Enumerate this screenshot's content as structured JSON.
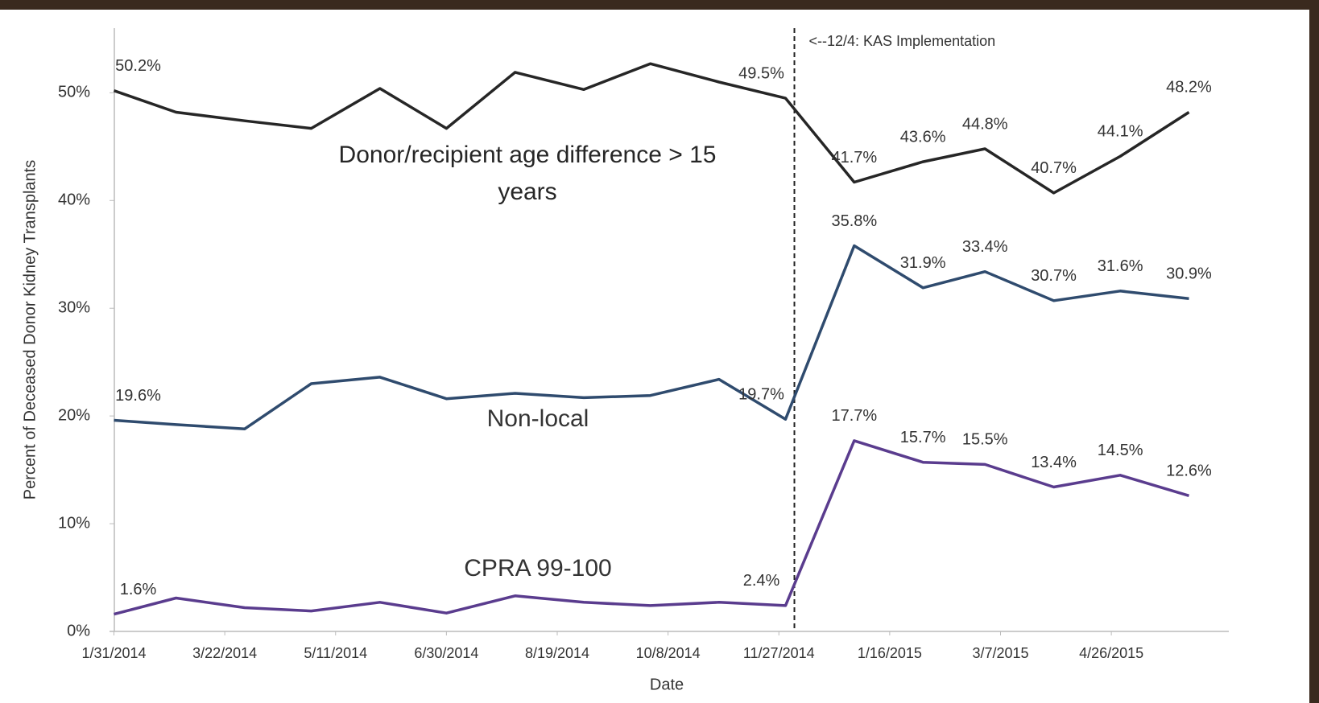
{
  "chart_data": {
    "type": "line",
    "x_label": "Date",
    "y_label": "Percent of Deceased Donor Kidney Transplants",
    "x": [
      "1/31/2014",
      "2/28/2014",
      "3/31/2014",
      "4/30/2014",
      "5/31/2014",
      "6/30/2014",
      "7/31/2014",
      "8/31/2014",
      "9/30/2014",
      "10/31/2014",
      "11/30/2014",
      "12/31/2014",
      "1/31/2015",
      "2/28/2015",
      "3/31/2015",
      "4/30/2015",
      "5/31/2015"
    ],
    "series": [
      {
        "name": "Donor/recipient age difference > 15 years",
        "color": "#262626",
        "values": [
          50.2,
          48.2,
          47.4,
          46.7,
          50.4,
          46.7,
          51.9,
          50.3,
          52.7,
          51.0,
          49.5,
          41.7,
          43.6,
          44.8,
          40.7,
          44.1,
          48.2
        ],
        "value_labels": [
          "50.2%",
          null,
          null,
          null,
          null,
          null,
          null,
          null,
          null,
          null,
          "49.5%",
          "41.7%",
          "43.6%",
          "44.8%",
          "40.7%",
          "44.1%",
          "48.2%"
        ]
      },
      {
        "name": "Non-local",
        "color": "#2f4b6e",
        "values": [
          19.6,
          19.2,
          18.8,
          23.0,
          23.6,
          21.6,
          22.1,
          21.7,
          21.9,
          23.4,
          19.7,
          35.8,
          31.9,
          33.4,
          30.7,
          31.6,
          30.9
        ],
        "value_labels": [
          "19.6%",
          null,
          null,
          null,
          null,
          null,
          null,
          null,
          null,
          null,
          "19.7%",
          "35.8%",
          "31.9%",
          "33.4%",
          "30.7%",
          "31.6%",
          "30.9%"
        ]
      },
      {
        "name": "CPRA 99-100",
        "color": "#5a3c8e",
        "values": [
          1.6,
          3.1,
          2.2,
          1.9,
          2.7,
          1.7,
          3.3,
          2.7,
          2.4,
          2.7,
          2.4,
          17.7,
          15.7,
          15.5,
          13.4,
          14.5,
          12.6
        ],
        "value_labels": [
          "1.6%",
          null,
          null,
          null,
          null,
          null,
          null,
          null,
          null,
          null,
          "2.4%",
          "17.7%",
          "15.7%",
          "15.5%",
          "13.4%",
          "14.5%",
          "12.6%"
        ]
      }
    ],
    "xlim": [
      "1/29/2014",
      "6/18/2015"
    ],
    "xticks": [
      "1/31/2014",
      "3/22/2014",
      "5/11/2014",
      "6/30/2014",
      "8/19/2014",
      "10/8/2014",
      "11/27/2014",
      "1/16/2015",
      "3/7/2015",
      "4/26/2015"
    ],
    "ylim": [
      0,
      56
    ],
    "yticks": [
      {
        "value": 0,
        "label": "0%"
      },
      {
        "value": 10,
        "label": "10%"
      },
      {
        "value": 20,
        "label": "20%"
      },
      {
        "value": 30,
        "label": "30%"
      },
      {
        "value": 40,
        "label": "40%"
      },
      {
        "value": 50,
        "label": "50%"
      }
    ],
    "annotation": {
      "date": "12/4/2014",
      "text": "<--12/4: KAS Implementation"
    },
    "grid": false
  }
}
